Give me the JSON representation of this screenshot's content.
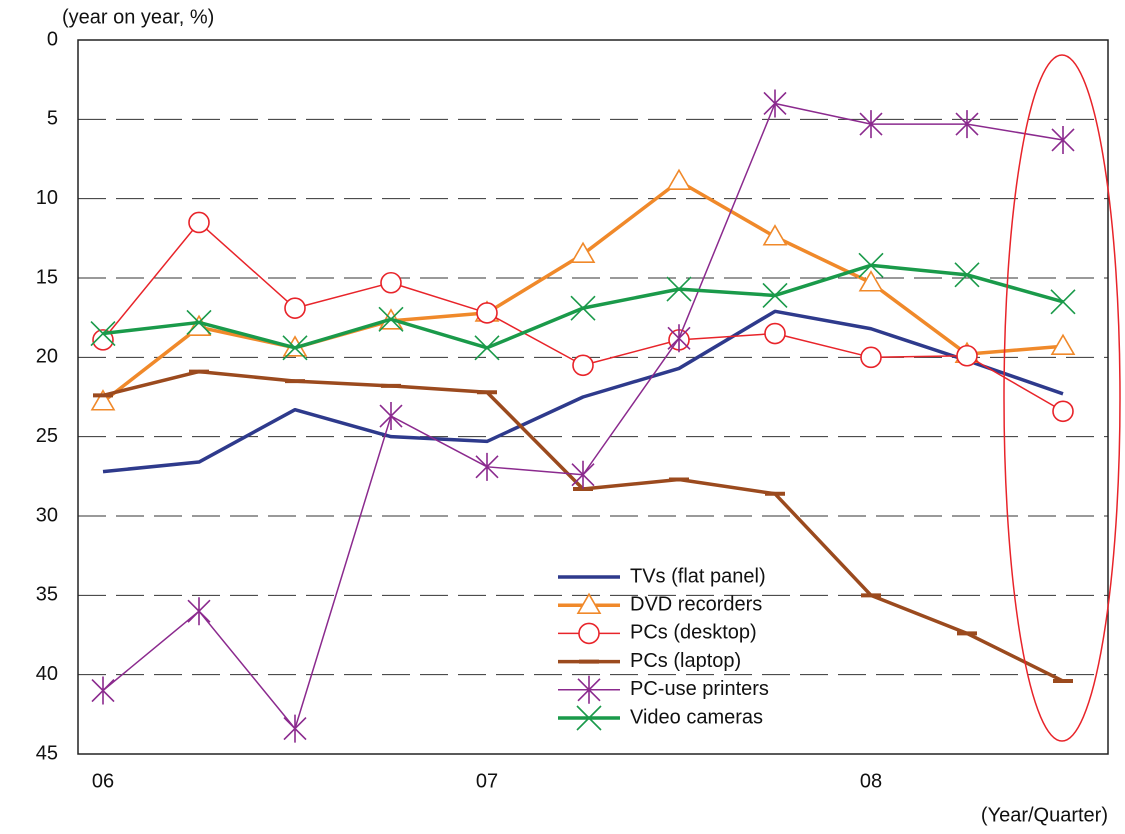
{
  "chart_data": {
    "type": "line",
    "y_label": "(year on year, %)",
    "x_label": "(Year/Quarter)",
    "categories": [
      "06",
      null,
      null,
      null,
      "07",
      null,
      null,
      null,
      "08",
      null,
      null
    ],
    "ylim": [
      0,
      45
    ],
    "y_reversed": true,
    "yticks": [
      0,
      5,
      10,
      15,
      20,
      25,
      30,
      35,
      40,
      45
    ],
    "grid": true,
    "legend": "lower-center",
    "series": [
      {
        "name": "TVs (flat panel)",
        "color": "#2e3a8c",
        "marker": "none",
        "line_width": 3.5,
        "values": [
          27.2,
          26.6,
          23.3,
          25.0,
          25.3,
          22.5,
          20.7,
          17.1,
          18.2,
          20.2,
          22.3
        ]
      },
      {
        "name": "DVD recorders",
        "color": "#f0892a",
        "marker": "triangle",
        "line_width": 3.5,
        "values": [
          22.8,
          18.1,
          19.4,
          17.7,
          17.2,
          13.5,
          8.9,
          12.4,
          15.3,
          19.8,
          19.3
        ]
      },
      {
        "name": "PCs (desktop)",
        "color": "#e8242a",
        "marker": "circle",
        "line_width": 1.5,
        "values": [
          18.9,
          11.5,
          16.9,
          15.3,
          17.2,
          20.5,
          18.9,
          18.5,
          20.0,
          19.9,
          23.4
        ]
      },
      {
        "name": "PCs (laptop)",
        "color": "#9b4a1e",
        "marker": "dash",
        "line_width": 3.5,
        "values": [
          22.4,
          20.9,
          21.5,
          21.8,
          22.2,
          28.3,
          27.7,
          28.6,
          35.0,
          37.4,
          40.4
        ]
      },
      {
        "name": "PC-use printers",
        "color": "#8b2a8e",
        "marker": "asterisk",
        "line_width": 1.5,
        "values": [
          41.0,
          36.0,
          43.4,
          23.7,
          26.9,
          27.4,
          18.8,
          4.0,
          5.3,
          5.3,
          6.3
        ]
      },
      {
        "name": "Video cameras",
        "color": "#1a9a4a",
        "marker": "x",
        "line_width": 3.5,
        "values": [
          18.5,
          17.8,
          19.4,
          17.6,
          19.4,
          16.9,
          15.7,
          16.1,
          14.2,
          14.8,
          16.5
        ]
      }
    ]
  }
}
